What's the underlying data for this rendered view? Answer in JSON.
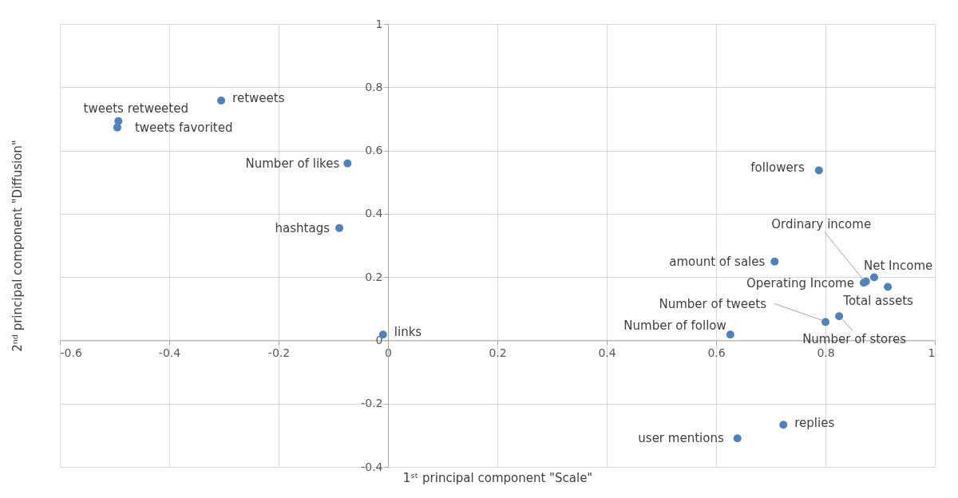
{
  "chart_data": {
    "type": "scatter",
    "xlabel": "1ˢᵗ principal component \"Scale\"",
    "ylabel": "2ⁿᵈ principal component \"Diffusion\"",
    "series": [
      {
        "color": "#4f81bd",
        "x": [
          -0.305,
          -0.493,
          -0.495,
          -0.074,
          -0.089,
          -0.009,
          0.788,
          0.707,
          0.874,
          0.87,
          0.889,
          0.914,
          0.8,
          0.825,
          0.626,
          0.723,
          0.639
        ],
        "values": [
          0.758,
          0.693,
          0.673,
          0.559,
          0.355,
          0.018,
          0.537,
          0.249,
          0.186,
          0.182,
          0.199,
          0.169,
          0.058,
          0.076,
          0.018,
          -0.267,
          -0.31
        ]
      }
    ],
    "annotations": [
      {
        "text": "retweets",
        "x": -0.305,
        "y": 0.758
      },
      {
        "text": "tweets retweeted",
        "x": -0.493,
        "y": 0.693
      },
      {
        "text": "tweets favorited",
        "x": -0.495,
        "y": 0.673
      },
      {
        "text": "Number of likes",
        "x": -0.074,
        "y": 0.559
      },
      {
        "text": "hashtags",
        "x": -0.089,
        "y": 0.355
      },
      {
        "text": "links",
        "x": -0.009,
        "y": 0.018
      },
      {
        "text": "followers",
        "x": 0.788,
        "y": 0.537
      },
      {
        "text": "amount of sales",
        "x": 0.707,
        "y": 0.249
      },
      {
        "text": "Ordinary income",
        "x": 0.874,
        "y": 0.186
      },
      {
        "text": "Operating Income",
        "x": 0.87,
        "y": 0.182
      },
      {
        "text": "Net Income",
        "x": 0.889,
        "y": 0.199
      },
      {
        "text": "Total assets",
        "x": 0.914,
        "y": 0.169
      },
      {
        "text": "Number of tweets",
        "x": 0.8,
        "y": 0.058
      },
      {
        "text": "Number of stores",
        "x": 0.825,
        "y": 0.076
      },
      {
        "text": "Number of follow",
        "x": 0.626,
        "y": 0.018
      },
      {
        "text": "replies",
        "x": 0.723,
        "y": -0.267
      },
      {
        "text": "user mentions",
        "x": 0.639,
        "y": -0.31
      }
    ],
    "xlim": [
      -0.6,
      1
    ],
    "xticks": [
      -0.6,
      -0.4,
      -0.2,
      0,
      0.2,
      0.4,
      0.6,
      0.8,
      1
    ],
    "ylim": [
      -0.4,
      1
    ],
    "yticks": [
      -0.4,
      -0.2,
      0,
      0.2,
      0.4,
      0.6,
      0.8,
      1
    ],
    "grid": true,
    "marker": "circle"
  }
}
